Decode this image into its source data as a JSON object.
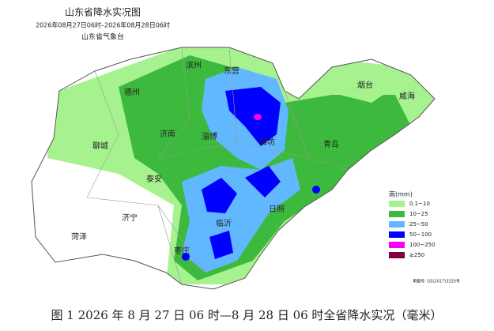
{
  "header": {
    "title": "山东省降水实况图",
    "subtitle": "2026年08月27日06时–2026年08月28日06时",
    "agency": "山东省气象台"
  },
  "cities": [
    "滨州",
    "东营",
    "德州",
    "烟台",
    "威海",
    "济南",
    "淄博",
    "潍坊",
    "聊城",
    "青岛",
    "泰安",
    "济宁",
    "日照",
    "临沂",
    "菏泽",
    "枣庄"
  ],
  "legend": {
    "title": "雨(mm)",
    "items": [
      {
        "label": "0.1~10",
        "color": "#a6f28f"
      },
      {
        "label": "10~25",
        "color": "#3dba3d"
      },
      {
        "label": "25~50",
        "color": "#61b8ff"
      },
      {
        "label": "50~100",
        "color": "#0000fe"
      },
      {
        "label": "100~250",
        "color": "#fa00fa"
      },
      {
        "label": "≥250",
        "color": "#800040"
      }
    ]
  },
  "map_number": "审图号: GS(2017)3320号",
  "caption": "图 1 2026 年 8 月 27 日 06 时—8 月 28 日 06 时全省降水实况（毫米）"
}
